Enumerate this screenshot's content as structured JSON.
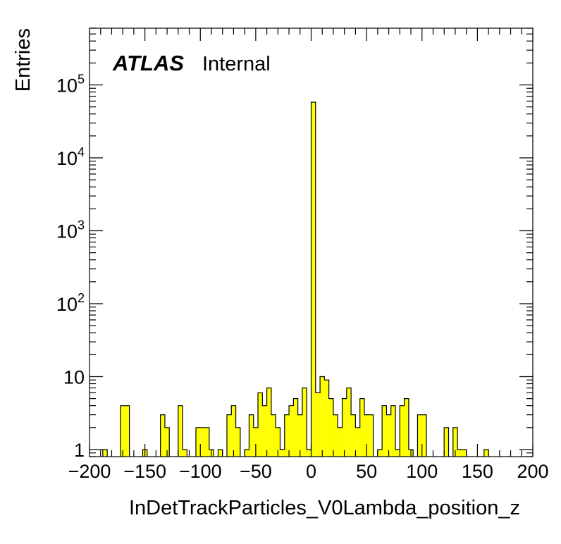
{
  "chart_data": {
    "type": "bar",
    "title": "",
    "xlabel": "InDetTrackParticles_V0Lambda_position_z",
    "ylabel": "Entries",
    "xlim": [
      -200,
      200
    ],
    "ylim": [
      0.8,
      600000
    ],
    "yscale": "log",
    "bin_width": 4,
    "fill_color": "#ffff00",
    "line_color": "#000000",
    "atlas_label": "ATLAS",
    "atlas_sublabel": "Internal",
    "x_ticks": [
      -200,
      -150,
      -100,
      -50,
      0,
      50,
      100,
      150,
      200
    ],
    "x_tick_labels": [
      "−200",
      "−150",
      "−100",
      "−50",
      "0",
      "50",
      "100",
      "150",
      "200"
    ],
    "y_ticks": [
      {
        "value": 1,
        "base": "1",
        "exp": ""
      },
      {
        "value": 10,
        "base": "10",
        "exp": ""
      },
      {
        "value": 100,
        "base": "10",
        "exp": "2"
      },
      {
        "value": 1000,
        "base": "10",
        "exp": "3"
      },
      {
        "value": 10000,
        "base": "10",
        "exp": "4"
      },
      {
        "value": 100000,
        "base": "10",
        "exp": "5"
      }
    ],
    "bins": [
      {
        "x_low": -188,
        "value": 1
      },
      {
        "x_low": -172,
        "value": 4
      },
      {
        "x_low": -168,
        "value": 4
      },
      {
        "x_low": -152,
        "value": 1
      },
      {
        "x_low": -136,
        "value": 3
      },
      {
        "x_low": -132,
        "value": 2
      },
      {
        "x_low": -120,
        "value": 4
      },
      {
        "x_low": -116,
        "value": 1
      },
      {
        "x_low": -104,
        "value": 2
      },
      {
        "x_low": -100,
        "value": 2
      },
      {
        "x_low": -96,
        "value": 2
      },
      {
        "x_low": -92,
        "value": 1
      },
      {
        "x_low": -84,
        "value": 1
      },
      {
        "x_low": -76,
        "value": 3
      },
      {
        "x_low": -72,
        "value": 4
      },
      {
        "x_low": -68,
        "value": 2
      },
      {
        "x_low": -60,
        "value": 1
      },
      {
        "x_low": -56,
        "value": 3
      },
      {
        "x_low": -52,
        "value": 2
      },
      {
        "x_low": -48,
        "value": 6
      },
      {
        "x_low": -44,
        "value": 4
      },
      {
        "x_low": -40,
        "value": 7
      },
      {
        "x_low": -36,
        "value": 3
      },
      {
        "x_low": -32,
        "value": 2
      },
      {
        "x_low": -28,
        "value": 1
      },
      {
        "x_low": -24,
        "value": 3
      },
      {
        "x_low": -20,
        "value": 4
      },
      {
        "x_low": -16,
        "value": 5
      },
      {
        "x_low": -12,
        "value": 3
      },
      {
        "x_low": -8,
        "value": 7
      },
      {
        "x_low": -4,
        "value": 1
      },
      {
        "x_low": 0,
        "value": 58000
      },
      {
        "x_low": 4,
        "value": 6
      },
      {
        "x_low": 8,
        "value": 10
      },
      {
        "x_low": 12,
        "value": 9
      },
      {
        "x_low": 16,
        "value": 5
      },
      {
        "x_low": 20,
        "value": 3
      },
      {
        "x_low": 24,
        "value": 2
      },
      {
        "x_low": 28,
        "value": 5
      },
      {
        "x_low": 32,
        "value": 7
      },
      {
        "x_low": 36,
        "value": 3
      },
      {
        "x_low": 40,
        "value": 2
      },
      {
        "x_low": 44,
        "value": 5
      },
      {
        "x_low": 48,
        "value": 3
      },
      {
        "x_low": 52,
        "value": 3
      },
      {
        "x_low": 60,
        "value": 1
      },
      {
        "x_low": 64,
        "value": 4
      },
      {
        "x_low": 68,
        "value": 3
      },
      {
        "x_low": 72,
        "value": 4
      },
      {
        "x_low": 76,
        "value": 1
      },
      {
        "x_low": 80,
        "value": 4
      },
      {
        "x_low": 84,
        "value": 5
      },
      {
        "x_low": 88,
        "value": 1
      },
      {
        "x_low": 96,
        "value": 3
      },
      {
        "x_low": 100,
        "value": 3
      },
      {
        "x_low": 120,
        "value": 2
      },
      {
        "x_low": 128,
        "value": 2
      },
      {
        "x_low": 132,
        "value": 1
      },
      {
        "x_low": 136,
        "value": 1
      },
      {
        "x_low": 156,
        "value": 1
      }
    ]
  }
}
